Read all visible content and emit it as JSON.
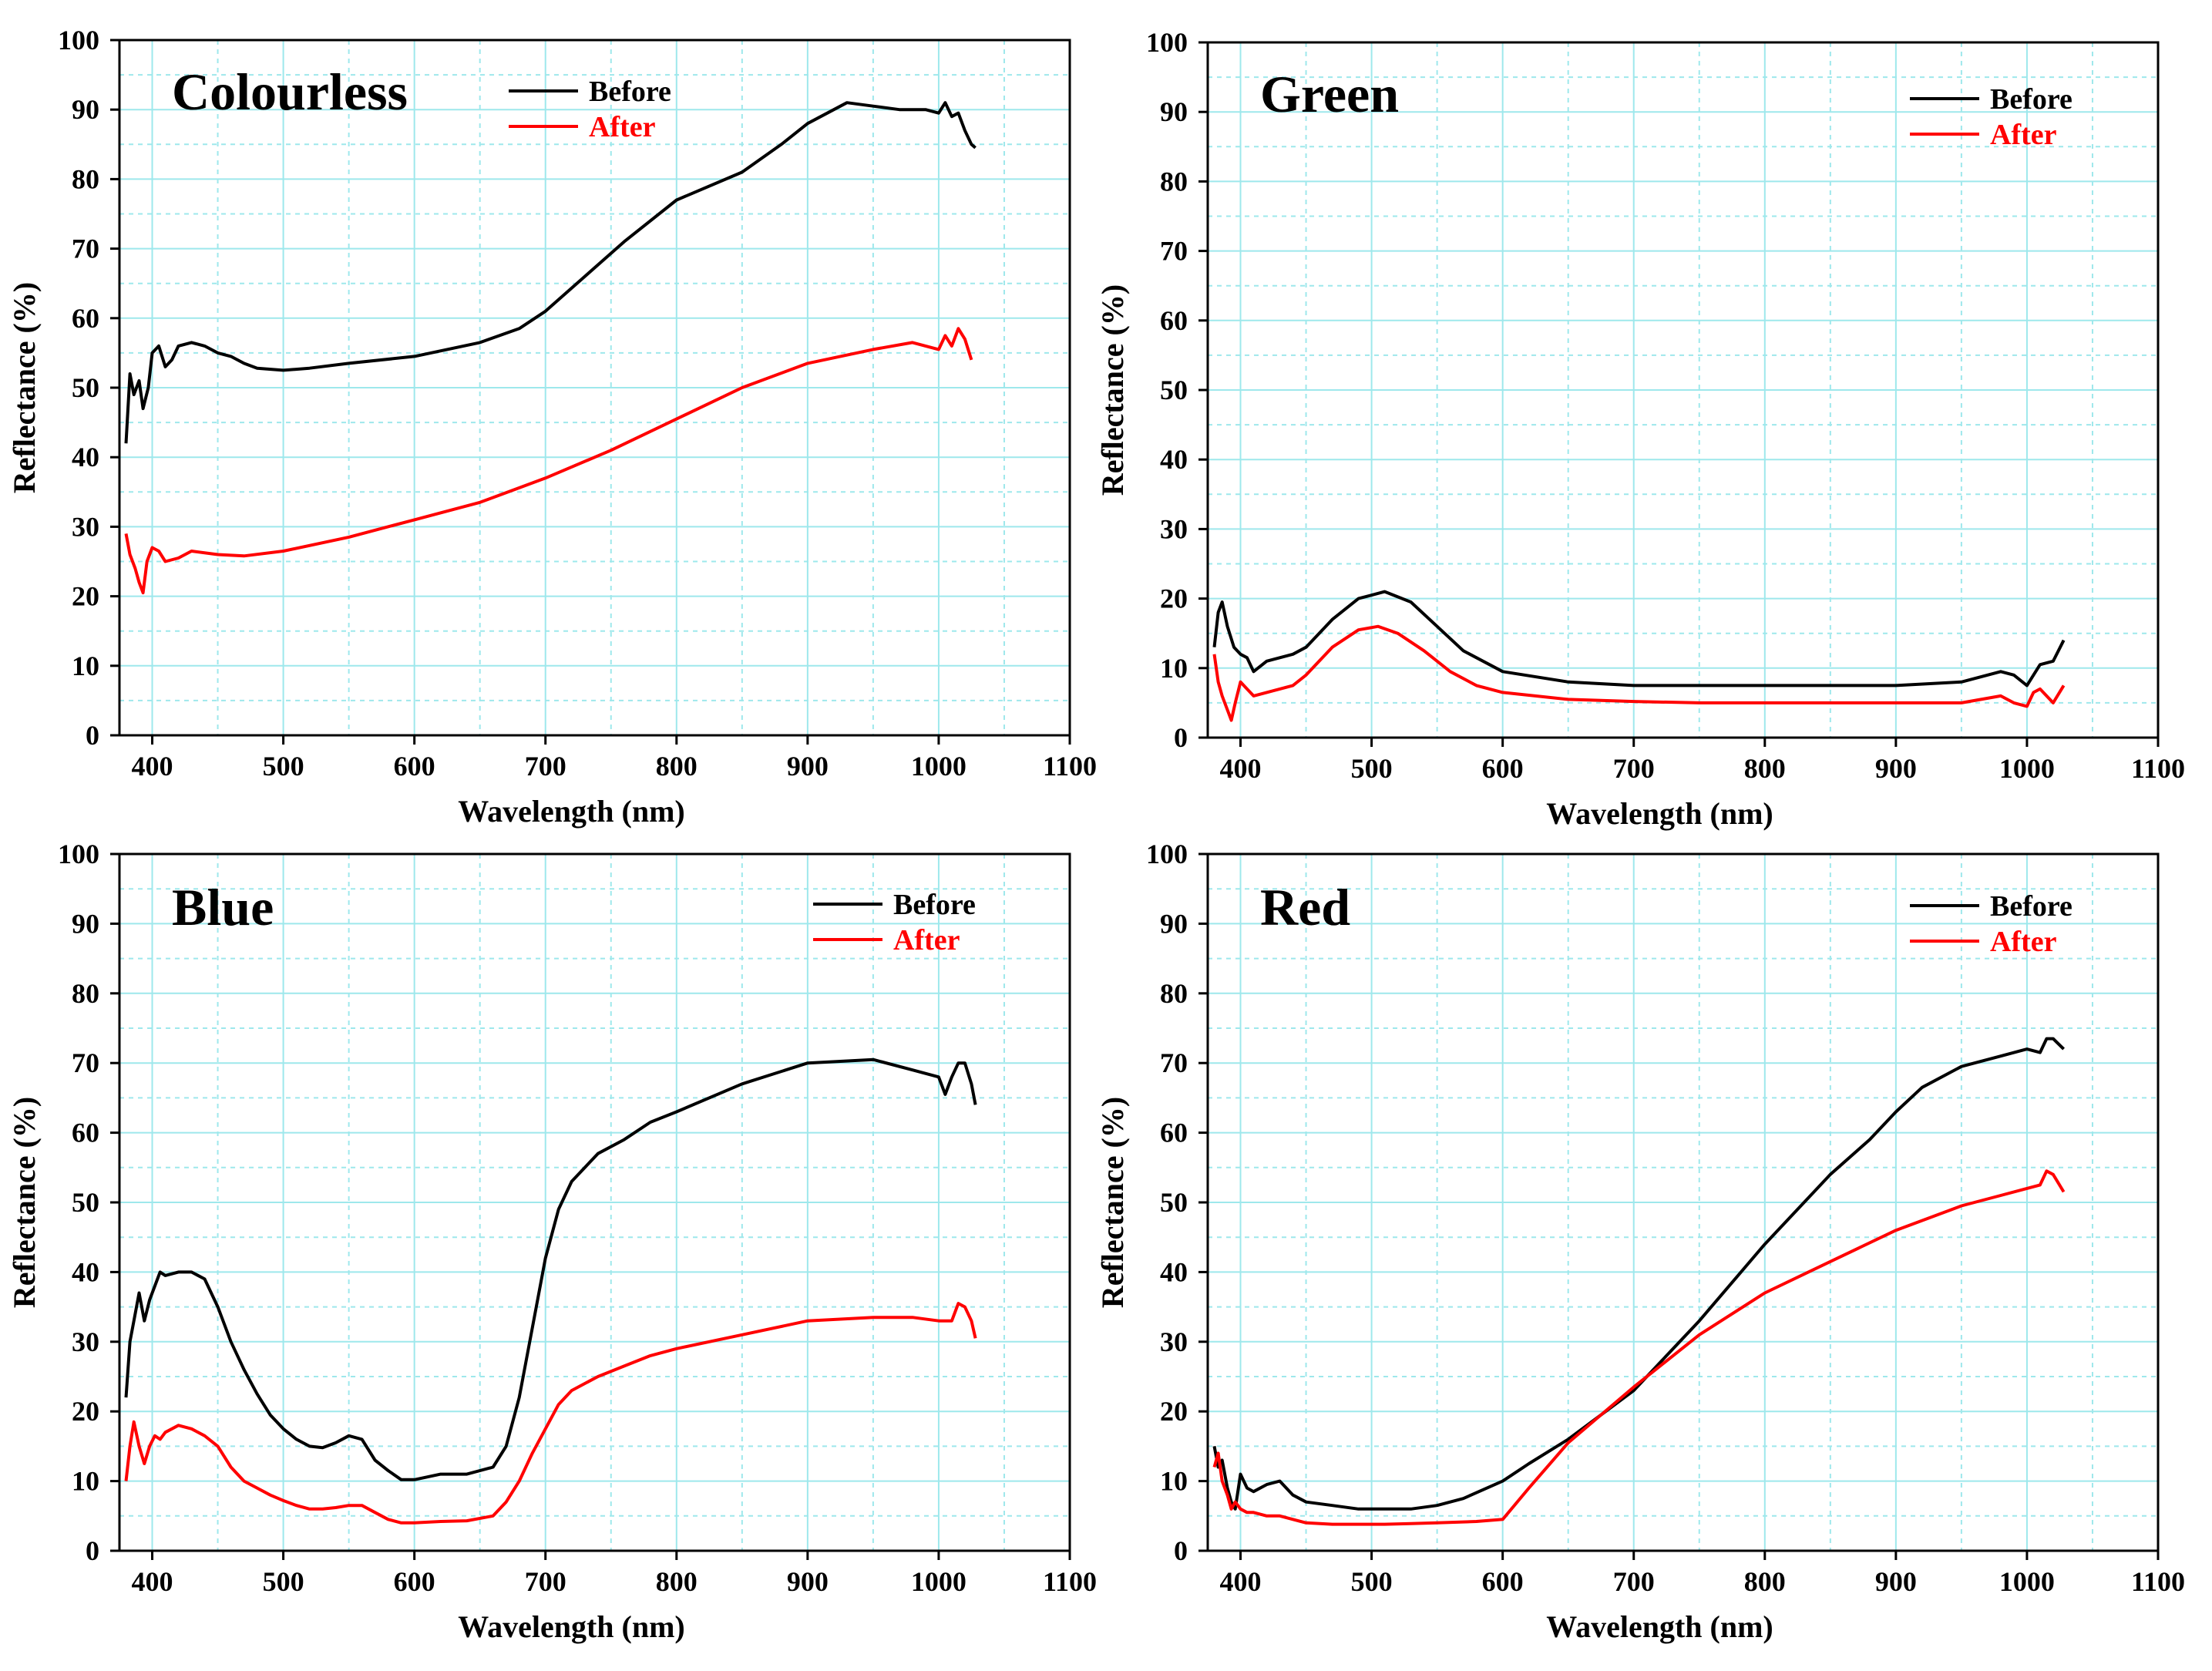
{
  "figure": {
    "name": "Reflectance spectra before and after treatment"
  },
  "colors": {
    "before": "#000000",
    "after": "#ff0000",
    "grid": "#9ee8ec"
  },
  "chart_data": [
    {
      "type": "line",
      "id": "colourless",
      "title": "Colourless",
      "xlabel": "Wavelength (nm)",
      "ylabel": "Reflectance (%)",
      "xlim": [
        375,
        1100
      ],
      "ylim": [
        0,
        100
      ],
      "xticks": [
        400,
        500,
        600,
        700,
        800,
        900,
        1000,
        1100
      ],
      "yticks": [
        0,
        10,
        20,
        30,
        40,
        50,
        60,
        70,
        80,
        90,
        100
      ],
      "legend": {
        "position": "top-center",
        "labels": [
          "Before",
          "After"
        ]
      },
      "series": [
        {
          "name": "Before",
          "x": [
            380,
            383,
            386,
            390,
            393,
            397,
            400,
            405,
            410,
            415,
            420,
            430,
            440,
            450,
            460,
            470,
            480,
            500,
            520,
            550,
            600,
            650,
            680,
            700,
            730,
            760,
            800,
            850,
            880,
            900,
            920,
            930,
            950,
            970,
            990,
            1000,
            1005,
            1010,
            1015,
            1020,
            1025,
            1028
          ],
          "y": [
            42,
            52,
            49,
            51,
            47,
            50,
            55,
            56,
            53,
            54,
            56,
            56.5,
            56,
            55,
            54.5,
            53.5,
            52.8,
            52.5,
            52.8,
            53.5,
            54.5,
            56.5,
            58.5,
            61,
            66,
            71,
            77,
            81,
            85,
            88,
            90,
            91,
            90.5,
            90,
            90,
            89.5,
            91,
            89,
            89.5,
            87,
            85,
            84.5
          ]
        },
        {
          "name": "After",
          "x": [
            380,
            383,
            387,
            390,
            393,
            396,
            400,
            405,
            410,
            420,
            430,
            450,
            470,
            500,
            550,
            600,
            650,
            700,
            750,
            800,
            850,
            900,
            950,
            980,
            1000,
            1005,
            1010,
            1015,
            1020,
            1025
          ],
          "y": [
            29,
            26,
            24,
            22,
            20.5,
            25,
            27,
            26.5,
            25,
            25.5,
            26.5,
            26,
            25.8,
            26.5,
            28.5,
            31,
            33.5,
            37,
            41,
            45.5,
            50,
            53.5,
            55.5,
            56.5,
            55.5,
            57.5,
            56,
            58.5,
            57,
            54
          ]
        }
      ]
    },
    {
      "type": "line",
      "id": "green",
      "title": "Green",
      "xlabel": "Wavelength (nm)",
      "ylabel": "Reflectance (%)",
      "xlim": [
        375,
        1100
      ],
      "ylim": [
        0,
        100
      ],
      "xticks": [
        400,
        500,
        600,
        700,
        800,
        900,
        1000,
        1100
      ],
      "yticks": [
        0,
        10,
        20,
        30,
        40,
        50,
        60,
        70,
        80,
        90,
        100
      ],
      "legend": {
        "position": "top-right",
        "labels": [
          "Before",
          "After"
        ]
      },
      "series": [
        {
          "name": "Before",
          "x": [
            380,
            383,
            386,
            390,
            395,
            400,
            405,
            410,
            420,
            430,
            440,
            450,
            470,
            490,
            510,
            530,
            550,
            570,
            600,
            650,
            700,
            750,
            800,
            850,
            900,
            950,
            980,
            990,
            1000,
            1005,
            1010,
            1020,
            1028
          ],
          "y": [
            13,
            18,
            19.5,
            16,
            13,
            12,
            11.5,
            9.5,
            11,
            11.5,
            12,
            13,
            17,
            20,
            21,
            19.5,
            16,
            12.5,
            9.5,
            8,
            7.5,
            7.5,
            7.5,
            7.5,
            7.5,
            8,
            9.5,
            9,
            7.5,
            9,
            10.5,
            11,
            14
          ]
        },
        {
          "name": "After",
          "x": [
            380,
            383,
            386,
            390,
            393,
            396,
            400,
            405,
            410,
            420,
            430,
            440,
            450,
            470,
            490,
            505,
            520,
            540,
            560,
            580,
            600,
            650,
            700,
            750,
            800,
            850,
            900,
            950,
            980,
            990,
            1000,
            1005,
            1010,
            1020,
            1028
          ],
          "y": [
            12,
            8,
            6,
            4,
            2.5,
            5,
            8,
            7,
            6,
            6.5,
            7,
            7.5,
            9,
            13,
            15.5,
            16,
            15,
            12.5,
            9.5,
            7.5,
            6.5,
            5.5,
            5.2,
            5,
            5,
            5,
            5,
            5,
            6,
            5,
            4.5,
            6.5,
            7,
            5,
            7.5
          ]
        }
      ]
    },
    {
      "type": "line",
      "id": "blue",
      "title": "Blue",
      "xlabel": "Wavelength (nm)",
      "ylabel": "Reflectance (%)",
      "xlim": [
        375,
        1100
      ],
      "ylim": [
        0,
        100
      ],
      "xticks": [
        400,
        500,
        600,
        700,
        800,
        900,
        1000,
        1100
      ],
      "yticks": [
        0,
        10,
        20,
        30,
        40,
        50,
        60,
        70,
        80,
        90,
        100
      ],
      "legend": {
        "position": "top-right",
        "labels": [
          "Before",
          "After"
        ]
      },
      "series": [
        {
          "name": "Before",
          "x": [
            380,
            383,
            386,
            390,
            394,
            398,
            402,
            406,
            410,
            420,
            430,
            440,
            450,
            460,
            470,
            480,
            490,
            500,
            510,
            520,
            530,
            540,
            550,
            560,
            570,
            580,
            590,
            600,
            620,
            640,
            660,
            670,
            680,
            690,
            700,
            710,
            720,
            740,
            760,
            780,
            800,
            850,
            900,
            950,
            980,
            1000,
            1005,
            1010,
            1015,
            1020,
            1025,
            1028
          ],
          "y": [
            22,
            30,
            33,
            37,
            33,
            36,
            38,
            40,
            39.5,
            40,
            40,
            39,
            35,
            30,
            26,
            22.5,
            19.5,
            17.5,
            16,
            15,
            14.8,
            15.5,
            16.5,
            16,
            13,
            11.5,
            10.2,
            10.2,
            11,
            11,
            12,
            15,
            22,
            32,
            42,
            49,
            53,
            57,
            59,
            61.5,
            63,
            67,
            70,
            70.5,
            69,
            68,
            65.5,
            68,
            70,
            70,
            67,
            64
          ]
        },
        {
          "name": "After",
          "x": [
            380,
            383,
            386,
            390,
            394,
            398,
            402,
            406,
            410,
            420,
            430,
            440,
            450,
            460,
            470,
            480,
            490,
            500,
            510,
            520,
            530,
            540,
            550,
            560,
            570,
            580,
            590,
            600,
            620,
            640,
            660,
            670,
            680,
            690,
            700,
            710,
            720,
            740,
            760,
            780,
            800,
            850,
            900,
            950,
            980,
            1000,
            1010,
            1015,
            1020,
            1025,
            1028
          ],
          "y": [
            10,
            15,
            18.5,
            15,
            12.5,
            15,
            16.5,
            16,
            17,
            18,
            17.5,
            16.5,
            15,
            12,
            10,
            9,
            8,
            7.2,
            6.5,
            6,
            6,
            6.2,
            6.5,
            6.5,
            5.5,
            4.5,
            4,
            4,
            4.2,
            4.3,
            5,
            7,
            10,
            14,
            17.5,
            21,
            23,
            25,
            26.5,
            28,
            29,
            31,
            33,
            33.5,
            33.5,
            33,
            33,
            35.5,
            35,
            33,
            30.5
          ]
        }
      ]
    },
    {
      "type": "line",
      "id": "red",
      "title": "Red",
      "xlabel": "Wavelength (nm)",
      "ylabel": "Reflectance (%)",
      "xlim": [
        375,
        1100
      ],
      "ylim": [
        0,
        100
      ],
      "xticks": [
        400,
        500,
        600,
        700,
        800,
        900,
        1000,
        1100
      ],
      "yticks": [
        0,
        10,
        20,
        30,
        40,
        50,
        60,
        70,
        80,
        90,
        100
      ],
      "legend": {
        "position": "top-right",
        "labels": [
          "Before",
          "After"
        ]
      },
      "series": [
        {
          "name": "Before",
          "x": [
            380,
            383,
            386,
            390,
            393,
            396,
            400,
            405,
            410,
            420,
            430,
            440,
            450,
            470,
            490,
            510,
            530,
            550,
            570,
            600,
            620,
            650,
            700,
            750,
            800,
            850,
            880,
            900,
            920,
            950,
            980,
            1000,
            1010,
            1015,
            1020,
            1028
          ],
          "y": [
            15,
            12,
            13,
            9,
            7,
            6,
            11,
            9,
            8.5,
            9.5,
            10,
            8,
            7,
            6.5,
            6,
            6,
            6,
            6.5,
            7.5,
            10,
            12.5,
            16,
            23,
            33,
            44,
            54,
            59,
            63,
            66.5,
            69.5,
            71,
            72,
            71.5,
            73.5,
            73.5,
            72
          ]
        },
        {
          "name": "After",
          "x": [
            380,
            383,
            386,
            390,
            393,
            396,
            400,
            405,
            410,
            420,
            430,
            440,
            450,
            470,
            490,
            510,
            530,
            550,
            580,
            600,
            620,
            650,
            700,
            750,
            800,
            850,
            900,
            950,
            980,
            1000,
            1010,
            1015,
            1020,
            1028
          ],
          "y": [
            12,
            14,
            10,
            8,
            6,
            7,
            6,
            5.5,
            5.5,
            5,
            5,
            4.5,
            4,
            3.8,
            3.8,
            3.8,
            3.9,
            4,
            4.2,
            4.5,
            9,
            15.5,
            23.5,
            31,
            37,
            41.5,
            46,
            49.5,
            51,
            52,
            52.5,
            54.5,
            54,
            51.5
          ]
        }
      ]
    }
  ]
}
